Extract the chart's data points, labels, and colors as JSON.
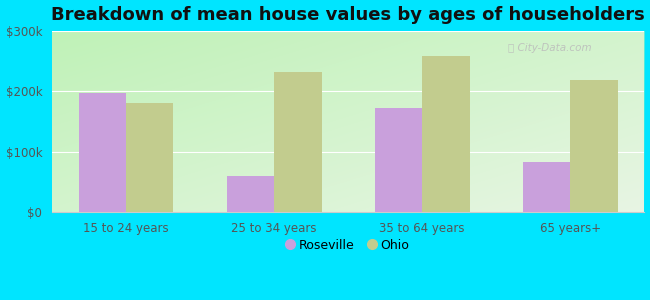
{
  "title": "Breakdown of mean house values by ages of householders",
  "categories": [
    "15 to 24 years",
    "25 to 34 years",
    "35 to 64 years",
    "65 years+"
  ],
  "roseville_values": [
    197000,
    60000,
    172000,
    83000
  ],
  "ohio_values": [
    181000,
    231000,
    258000,
    218000
  ],
  "roseville_color": "#c9a0dc",
  "ohio_color": "#c2cc8e",
  "background_color": "#00e5ff",
  "ylim": [
    0,
    300000
  ],
  "yticks": [
    0,
    100000,
    200000,
    300000
  ],
  "ytick_labels": [
    "$0",
    "$100k",
    "$200k",
    "$300k"
  ],
  "legend_roseville": "Roseville",
  "legend_ohio": "Ohio",
  "title_fontsize": 13,
  "bar_width": 0.32
}
